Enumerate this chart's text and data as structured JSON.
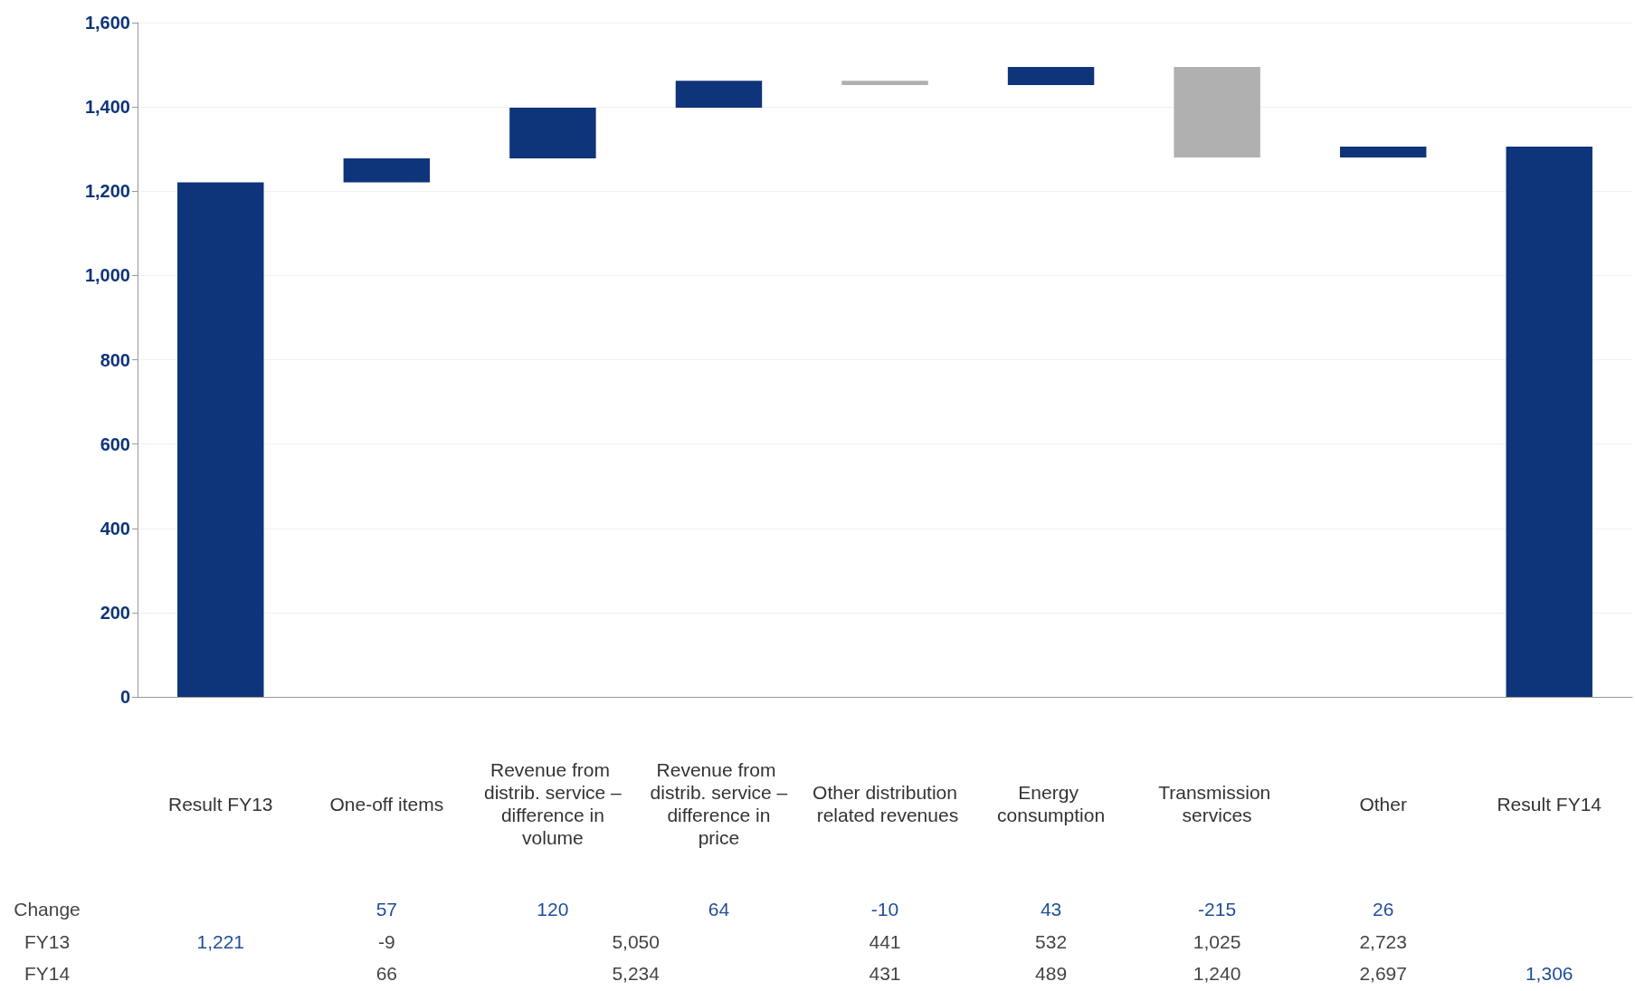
{
  "chart_data": {
    "type": "bar",
    "categories": [
      "Result FY13",
      "One-off items",
      "Revenue from distrib. service – difference in volume",
      "Revenue from distrib. service – difference in price",
      "Other distribution related revenues",
      "Energy consumption",
      "Transmission services",
      "Other",
      "Result FY14"
    ],
    "values": [
      1221,
      57,
      120,
      64,
      -10,
      43,
      -215,
      26,
      1306
    ],
    "base": [
      0,
      1221,
      1278,
      1398,
      1462,
      1452,
      1495,
      1280,
      0
    ],
    "colors": [
      "#0e3479",
      "#0e3479",
      "#0e3479",
      "#0e3479",
      "#b0b0b0",
      "#0e3479",
      "#b0b0b0",
      "#0e3479",
      "#0e3479"
    ],
    "value_labels": [
      null,
      "57",
      "120",
      "64",
      "-10",
      "43",
      "-215",
      "26",
      null
    ],
    "ylim": [
      0,
      1600
    ],
    "yticks": [
      0,
      200,
      400,
      600,
      800,
      {
        "value": 1000,
        "label": "1,000"
      },
      {
        "value": 1200,
        "label": "1,200"
      },
      {
        "value": 1400,
        "label": "1,400"
      },
      {
        "value": 1600,
        "label": "1,600"
      }
    ],
    "grid": "y",
    "annotations": [
      "Change",
      "FY13",
      "1,221",
      "-9",
      "5,050",
      "441",
      "532",
      "1,025",
      "2,723",
      "FY14",
      "66",
      "5,234",
      "431",
      "489",
      "1,240",
      "2,697",
      "1,306"
    ]
  }
}
